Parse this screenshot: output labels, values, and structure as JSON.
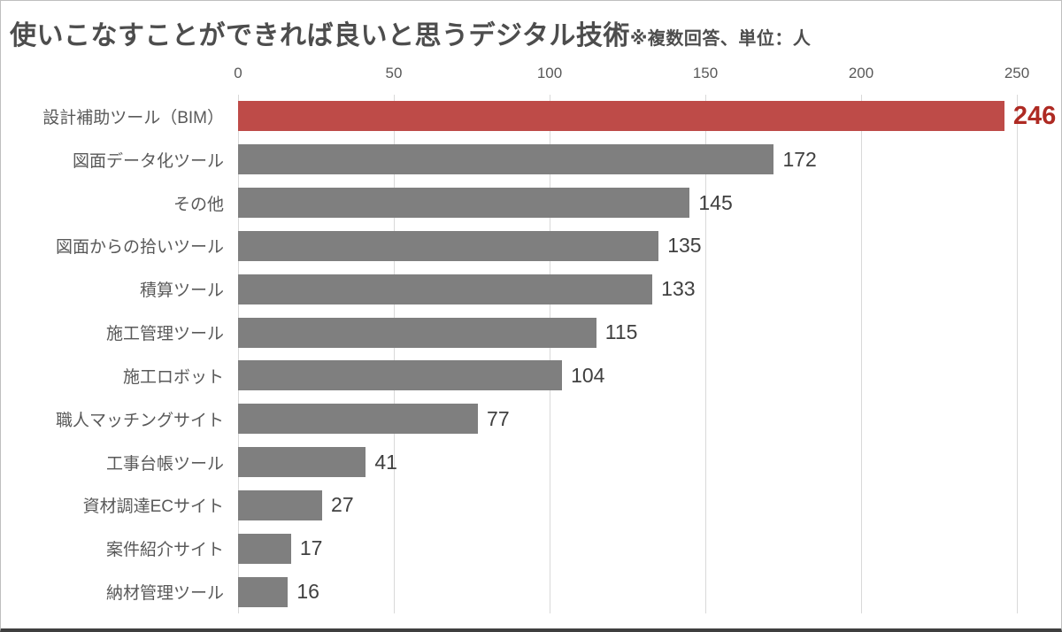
{
  "title": {
    "main": "使いこなすことができれば良いと思うデジタル技術",
    "note": "※複数回答、単位：人"
  },
  "chart_data": {
    "type": "bar",
    "orientation": "horizontal",
    "title": "使いこなすことができれば良いと思うデジタル技術",
    "subtitle": "※複数回答、単位：人",
    "categories": [
      "設計補助ツール（BIM）",
      "図面データ化ツール",
      "その他",
      "図面からの拾いツール",
      "積算ツール",
      "施工管理ツール",
      "施工ロボット",
      "職人マッチングサイト",
      "工事台帳ツール",
      "資材調達ECサイト",
      "案件紹介サイト",
      "納材管理ツール"
    ],
    "values": [
      246,
      172,
      145,
      135,
      133,
      115,
      104,
      77,
      41,
      27,
      17,
      16
    ],
    "highlight_index": 0,
    "xlim": [
      0,
      250
    ],
    "xticks": [
      0,
      50,
      100,
      150,
      200,
      250
    ],
    "grid": true,
    "legend": false,
    "colors": {
      "bar_default": "#7f7f7f",
      "bar_highlight": "#be4b48",
      "value_label": "#404040",
      "value_label_highlight": "#ae2a23",
      "gridline": "#d9d9d9",
      "tick_label": "#595959",
      "category_label": "#595959",
      "title": "#4d4d4d"
    }
  }
}
